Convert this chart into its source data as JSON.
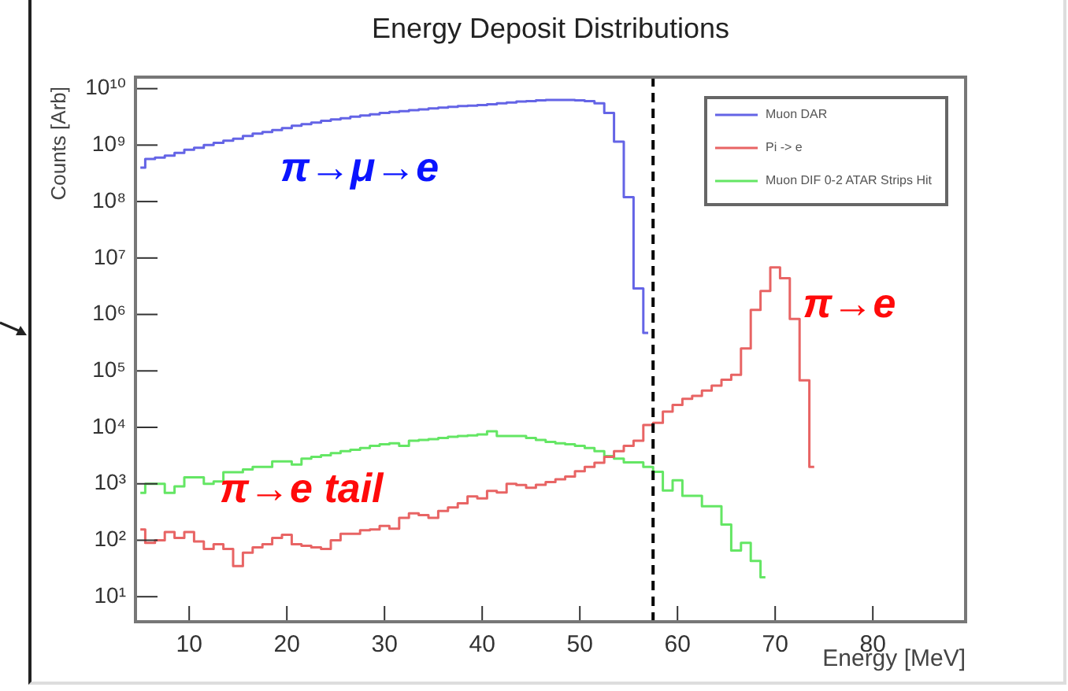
{
  "chart_data": {
    "type": "step",
    "title": "Energy Deposit Distributions",
    "xlabel": "Energy [MeV]",
    "ylabel": "Counts [Arb]",
    "x": [
      5,
      6,
      7,
      8,
      9,
      10,
      11,
      12,
      13,
      14,
      15,
      16,
      17,
      18,
      19,
      20,
      21,
      22,
      23,
      24,
      25,
      26,
      27,
      28,
      29,
      30,
      31,
      32,
      33,
      34,
      35,
      36,
      37,
      38,
      39,
      40,
      41,
      42,
      43,
      44,
      45,
      46,
      47,
      48,
      49,
      50,
      51,
      52,
      53,
      54,
      55,
      56,
      57,
      58,
      59,
      60,
      61,
      62,
      63,
      64,
      65,
      66,
      67,
      68,
      69,
      70,
      71,
      72,
      73,
      74
    ],
    "series": [
      {
        "name": "Muon DAR",
        "color": "#6464e6",
        "values": [
          400000000.0,
          570000000.0,
          600000000.0,
          650000000.0,
          730000000.0,
          830000000.0,
          900000000.0,
          1000000000.0,
          1100000000.0,
          1200000000.0,
          1300000000.0,
          1450000000.0,
          1600000000.0,
          1700000000.0,
          1850000000.0,
          2000000000.0,
          2200000000.0,
          2350000000.0,
          2500000000.0,
          2700000000.0,
          2850000000.0,
          3000000000.0,
          3200000000.0,
          3350000000.0,
          3500000000.0,
          3700000000.0,
          3850000000.0,
          4000000000.0,
          4150000000.0,
          4300000000.0,
          4450000000.0,
          4600000000.0,
          4750000000.0,
          4900000000.0,
          5000000000.0,
          5100000000.0,
          5300000000.0,
          5500000000.0,
          5700000000.0,
          5900000000.0,
          6000000000.0,
          6200000000.0,
          6300000000.0,
          6300000000.0,
          6300000000.0,
          6200000000.0,
          6000000000.0,
          5500000000.0,
          3700000000.0,
          1150000000.0,
          120000000.0,
          2900000.0,
          470000.0,
          null,
          null,
          null,
          null,
          null,
          null,
          null,
          null,
          null,
          null,
          null,
          null,
          null,
          null,
          null,
          null,
          null
        ]
      },
      {
        "name": "Pi -> e",
        "color": "#e86464",
        "values": [
          155,
          90,
          100,
          140,
          110,
          140,
          95,
          70,
          85,
          70,
          35,
          60,
          75,
          85,
          110,
          125,
          85,
          80,
          75,
          70,
          100,
          130,
          130,
          150,
          155,
          180,
          160,
          250,
          300,
          280,
          250,
          330,
          380,
          450,
          600,
          550,
          750,
          700,
          1000,
          950,
          850,
          960,
          1070,
          1200,
          1350,
          1670,
          2000,
          2350,
          3000,
          3800,
          4700,
          5800,
          11000,
          12000,
          19000,
          25000,
          32000,
          36000,
          45000,
          55000,
          70000,
          85000,
          250000,
          1200000,
          2600000,
          6800000,
          4400000,
          830000,
          68000,
          2000
        ]
      },
      {
        "name": "Muon DIF 0-2 ATAR Strips Hit",
        "color": "#64e664",
        "values": [
          690,
          1000,
          1000,
          690,
          900,
          1300,
          1300,
          1000,
          1100,
          1600,
          1600,
          1800,
          2000,
          2000,
          2500,
          2500,
          2200,
          2800,
          3000,
          3200,
          3500,
          3800,
          4000,
          4300,
          4700,
          5000,
          5200,
          4700,
          5800,
          6000,
          6200,
          6500,
          6800,
          7000,
          7200,
          7500,
          8500,
          7000,
          7000,
          7000,
          6500,
          6000,
          5500,
          5200,
          5000,
          4700,
          4300,
          3800,
          3100,
          2800,
          2400,
          2400,
          2000,
          1630,
          760,
          1150,
          610,
          610,
          400,
          400,
          190,
          66,
          90,
          43,
          22,
          null,
          null,
          null,
          null,
          null
        ]
      }
    ],
    "log": "y",
    "xlim": [
      4.5,
      89.5
    ],
    "xticks": [
      10,
      20,
      30,
      40,
      50,
      60,
      70,
      80
    ],
    "ylim": [
      3.6,
      16000000000.0
    ],
    "yticks": [
      {
        "value": 10,
        "label": "10¹"
      },
      {
        "value": 100,
        "label": "10²"
      },
      {
        "value": 1000,
        "label": "10³"
      },
      {
        "value": 10000,
        "label": "10⁴"
      },
      {
        "value": 100000,
        "label": "10⁵"
      },
      {
        "value": 1000000,
        "label": "10⁶"
      },
      {
        "value": 10000000,
        "label": "10⁷"
      },
      {
        "value": 100000000,
        "label": "10⁸"
      },
      {
        "value": 1000000000,
        "label": "10⁹"
      },
      {
        "value": 10000000000,
        "label": "10¹⁰"
      }
    ],
    "ref_lines": [
      {
        "axis": "x",
        "value": 57.5,
        "color": "#000000",
        "line_style": "dashed"
      }
    ],
    "annotations": [
      "π→μ→e",
      "π→e",
      "π→e tail"
    ],
    "legend": "top right",
    "grid": false,
    "marker": "none"
  }
}
